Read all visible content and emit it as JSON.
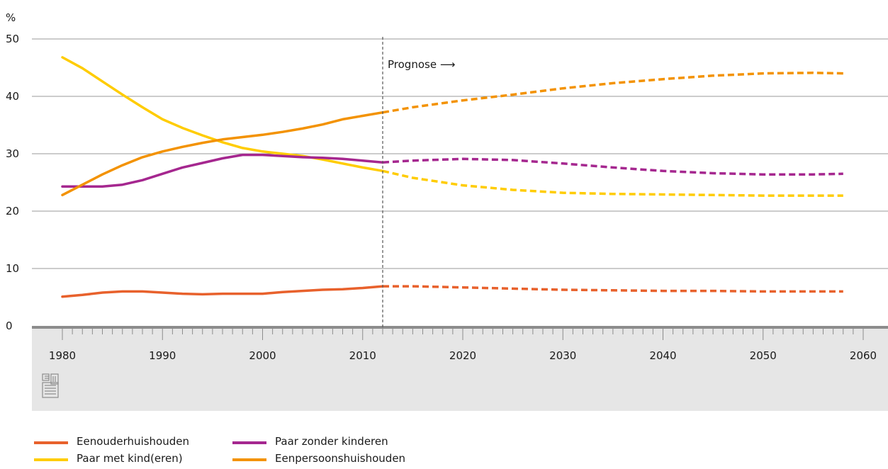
{
  "chart_data": {
    "type": "line",
    "unit_label": "%",
    "y_ticks": [
      0,
      10,
      20,
      30,
      40,
      50
    ],
    "x_ticks": [
      1980,
      1990,
      2000,
      2010,
      2020,
      2030,
      2040,
      2050,
      2060
    ],
    "xlim": [
      1980,
      2060
    ],
    "ylim": [
      0,
      50
    ],
    "grid": "horizontal",
    "prognosis_year": 2012,
    "prognosis_label": "Prognose ⟶",
    "legend_position": "bottom-left",
    "series": [
      {
        "name": "Eenouderhuishouden",
        "color": "#e8612c",
        "x": [
          1980,
          1982,
          1984,
          1986,
          1988,
          1990,
          1992,
          1994,
          1996,
          1998,
          2000,
          2002,
          2004,
          2006,
          2008,
          2010,
          2012,
          2015,
          2020,
          2025,
          2030,
          2035,
          2040,
          2045,
          2050,
          2055,
          2058
        ],
        "y": [
          5.1,
          5.4,
          5.8,
          6.0,
          6.0,
          5.8,
          5.6,
          5.5,
          5.6,
          5.6,
          5.6,
          5.9,
          6.1,
          6.3,
          6.4,
          6.6,
          6.9,
          6.9,
          6.7,
          6.5,
          6.3,
          6.2,
          6.1,
          6.1,
          6.0,
          6.0,
          6.0
        ]
      },
      {
        "name": "Paar met kind(eren)",
        "color": "#ffcc00",
        "x": [
          1980,
          1982,
          1984,
          1986,
          1988,
          1990,
          1992,
          1994,
          1996,
          1998,
          2000,
          2002,
          2004,
          2006,
          2008,
          2010,
          2012,
          2015,
          2020,
          2025,
          2030,
          2035,
          2040,
          2045,
          2050,
          2055,
          2058
        ],
        "y": [
          46.8,
          44.9,
          42.6,
          40.3,
          38.1,
          36.0,
          34.5,
          33.2,
          32.0,
          31.0,
          30.4,
          30.0,
          29.6,
          29.0,
          28.3,
          27.6,
          27.0,
          25.8,
          24.5,
          23.7,
          23.2,
          23.0,
          22.9,
          22.8,
          22.7,
          22.7,
          22.7
        ]
      },
      {
        "name": "Paar zonder kinderen",
        "color": "#a5278f",
        "x": [
          1980,
          1982,
          1984,
          1986,
          1988,
          1990,
          1992,
          1994,
          1996,
          1998,
          2000,
          2002,
          2004,
          2006,
          2008,
          2010,
          2012,
          2015,
          2020,
          2025,
          2030,
          2035,
          2040,
          2045,
          2050,
          2055,
          2058
        ],
        "y": [
          24.3,
          24.3,
          24.3,
          24.6,
          25.4,
          26.5,
          27.6,
          28.4,
          29.2,
          29.8,
          29.8,
          29.6,
          29.4,
          29.3,
          29.1,
          28.8,
          28.5,
          28.8,
          29.1,
          28.9,
          28.3,
          27.6,
          27.0,
          26.6,
          26.4,
          26.4,
          26.5
        ]
      },
      {
        "name": "Eenpersoonshuishouden",
        "color": "#f39200",
        "x": [
          1980,
          1982,
          1984,
          1986,
          1988,
          1990,
          1992,
          1994,
          1996,
          1998,
          2000,
          2002,
          2004,
          2006,
          2008,
          2010,
          2012,
          2015,
          2020,
          2025,
          2030,
          2035,
          2040,
          2045,
          2050,
          2055,
          2058
        ],
        "y": [
          22.8,
          24.6,
          26.4,
          28.0,
          29.4,
          30.4,
          31.2,
          31.9,
          32.5,
          32.9,
          33.3,
          33.8,
          34.4,
          35.1,
          36.0,
          36.6,
          37.2,
          38.1,
          39.3,
          40.3,
          41.4,
          42.3,
          43.0,
          43.6,
          44.0,
          44.1,
          44.0
        ]
      }
    ]
  }
}
